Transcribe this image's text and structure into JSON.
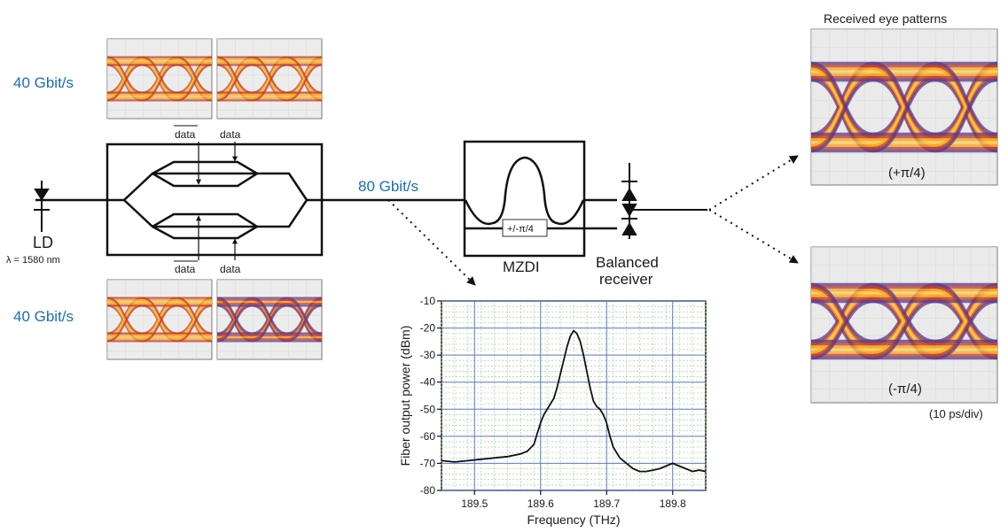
{
  "colors": {
    "accent_blue": "#1b6eb3",
    "grid_green": "#9fd49a",
    "grid_blue": "#5b79c9",
    "eye_orange": "#f5a623",
    "eye_red": "#c0392b",
    "eye_purple": "#5b3a8c",
    "trace": "#111111"
  },
  "labels": {
    "rate_top": "40 Gbit/s",
    "rate_bottom": "40 Gbit/s",
    "rate_mid": "80 Gbit/s",
    "data_bar_top": "data",
    "data_top": "data",
    "data_bar_bottom": "data",
    "data_bottom": "data",
    "ld": "LD",
    "wavelength": "λ = 1580 nm",
    "phase_box": "+/-π/4",
    "mzdi": "MZDI",
    "balanced_1": "Balanced",
    "balanced_2": "receiver",
    "eye_title": "Received eye patterns",
    "eye_plus": "(+π/4)",
    "eye_minus": "(-π/4)",
    "time_div": "(10 ps/div)"
  },
  "icons": {
    "laser": "laser-diode-icon",
    "photodiode": "photodiode-icon"
  },
  "chart_data": {
    "type": "line",
    "title": "",
    "xlabel": "Frequency (THz)",
    "ylabel": "Fiber output power (dBm)",
    "xlim": [
      189.45,
      189.85
    ],
    "ylim": [
      -80,
      -10
    ],
    "xticks": [
      189.5,
      189.6,
      189.7,
      189.8
    ],
    "yticks": [
      -10,
      -20,
      -30,
      -40,
      -50,
      -60,
      -70,
      -80
    ],
    "grid": true,
    "series": [
      {
        "x": [
          189.45,
          189.47,
          189.49,
          189.51,
          189.53,
          189.55,
          189.57,
          189.58,
          189.59,
          189.595,
          189.6,
          189.605,
          189.61,
          189.615,
          189.62,
          189.625,
          189.63,
          189.635,
          189.64,
          189.645,
          189.65,
          189.655,
          189.66,
          189.665,
          189.67,
          189.675,
          189.68,
          189.685,
          189.69,
          189.695,
          189.7,
          189.705,
          189.71,
          189.72,
          189.73,
          189.74,
          189.75,
          189.76,
          189.77,
          189.78,
          189.79,
          189.8,
          189.81,
          189.82,
          189.83,
          189.84,
          189.85
        ],
        "y": [
          -69,
          -69.5,
          -69,
          -68.5,
          -68,
          -67.5,
          -66.5,
          -65.5,
          -63,
          -59,
          -55,
          -52,
          -50,
          -48,
          -46,
          -42,
          -37,
          -32,
          -27,
          -23,
          -21,
          -22,
          -25,
          -30,
          -36,
          -42,
          -47,
          -49,
          -50,
          -52,
          -55,
          -60,
          -64,
          -68,
          -70,
          -72,
          -73,
          -73,
          -72.5,
          -72,
          -71,
          -70,
          -71,
          -72,
          -73,
          -72.5,
          -73
        ]
      }
    ]
  }
}
